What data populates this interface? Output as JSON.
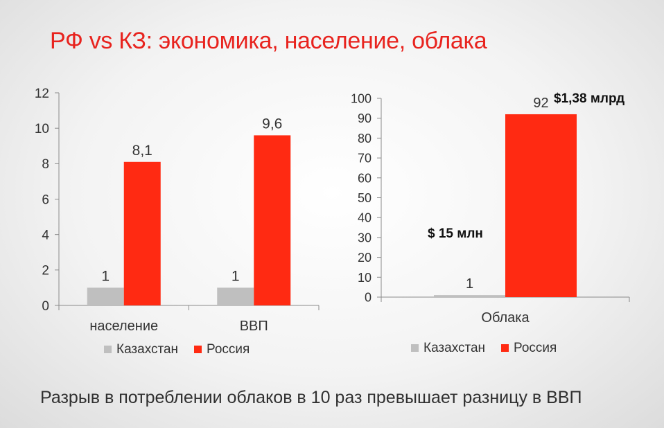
{
  "slide": {
    "title": "РФ vs КЗ: экономика, население, облака",
    "footer": "Разрыв в потреблении облаков в 10 раз превышает разницу в ВВП"
  },
  "colors": {
    "kazakhstan": "#bfbfbf",
    "russia": "#ff2a12",
    "axis": "#8a8a8a",
    "text": "#333333"
  },
  "chart_data": [
    {
      "type": "bar",
      "categories": [
        "население",
        "ВВП"
      ],
      "series": [
        {
          "name": "Казахстан",
          "values": [
            1,
            1
          ],
          "labels": [
            "1",
            "1"
          ]
        },
        {
          "name": "Россия",
          "values": [
            8.1,
            9.6
          ],
          "labels": [
            "8,1",
            "9,6"
          ]
        }
      ],
      "ylim": [
        0,
        12
      ],
      "yticks": [
        0,
        2,
        4,
        6,
        8,
        10,
        12
      ],
      "grid": false,
      "legend": "bottom"
    },
    {
      "type": "bar",
      "categories": [
        "Облака"
      ],
      "series": [
        {
          "name": "Казахстан",
          "values": [
            1
          ],
          "labels": [
            "1"
          ]
        },
        {
          "name": "Россия",
          "values": [
            92
          ],
          "labels": [
            "92"
          ]
        }
      ],
      "ylim": [
        0,
        100
      ],
      "yticks": [
        0,
        10,
        20,
        30,
        40,
        50,
        60,
        70,
        80,
        90,
        100
      ],
      "grid": false,
      "legend": "bottom",
      "annotations": [
        "$ 15 млн",
        "$1,38 млрд"
      ]
    }
  ]
}
